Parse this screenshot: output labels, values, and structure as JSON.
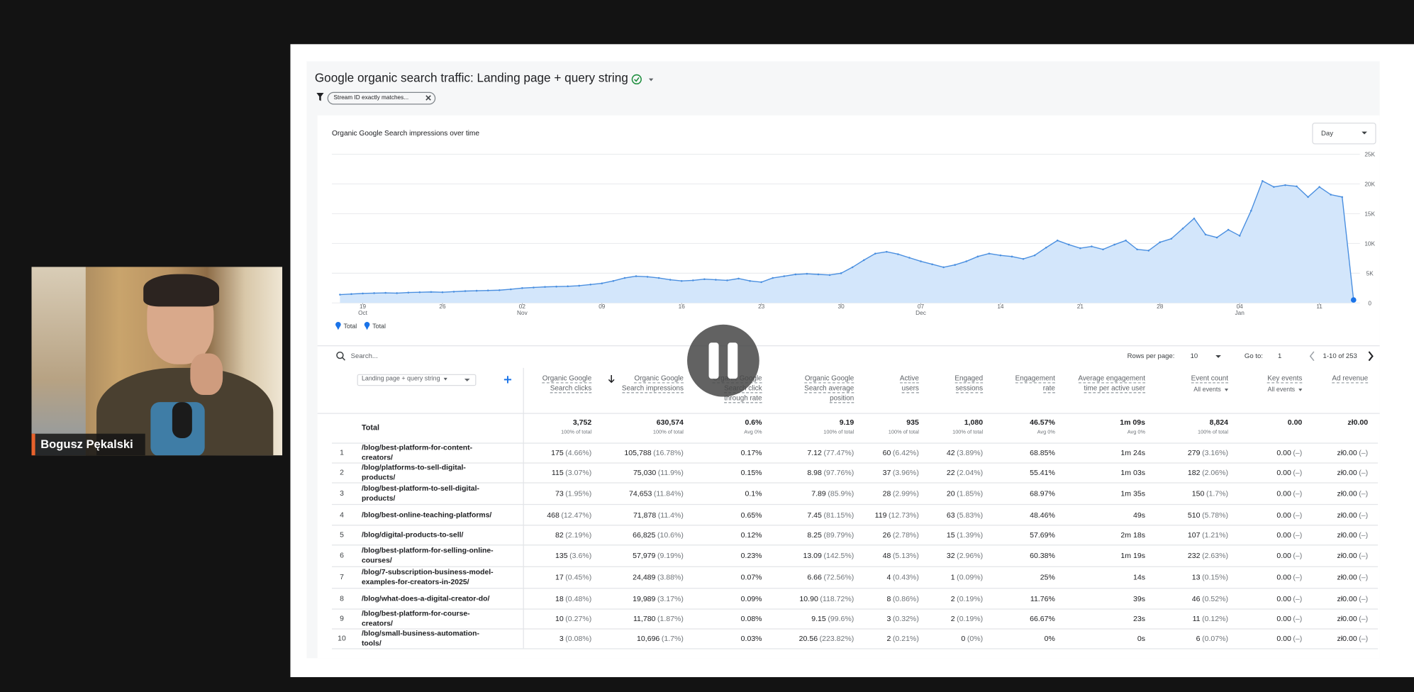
{
  "call": {
    "participant_name": "Bogusz Pękalski"
  },
  "report": {
    "title": "Google organic search traffic: Landing page + query string",
    "filter": "Stream ID exactly matches...",
    "granularity": "Day",
    "chart": {
      "type": "area",
      "title": "Organic Google Search impressions over time",
      "color": "#4a8fe0",
      "fill": "#d3e6fb",
      "grid": true,
      "values": [
        1400,
        1500,
        1600,
        1650,
        1700,
        1650,
        1750,
        1800,
        1850,
        1800,
        1900,
        2000,
        2050,
        2100,
        2150,
        2300,
        2500,
        2600,
        2700,
        2750,
        2800,
        2900,
        3100,
        3300,
        3700,
        4200,
        4500,
        4400,
        4200,
        3900,
        3700,
        3800,
        4000,
        3900,
        3800,
        4100,
        3700,
        3500,
        4200,
        4500,
        4800,
        4900,
        4800,
        4700,
        5000,
        6000,
        7200,
        8300,
        8600,
        8200,
        7600,
        7000,
        6500,
        6000,
        6400,
        7000,
        7800,
        8300,
        8000,
        7800,
        7400,
        8000,
        9300,
        10500,
        9800,
        9200,
        9500,
        9000,
        9800,
        10500,
        9000,
        8800,
        10200,
        10800,
        12500,
        14200,
        11500,
        11000,
        12300,
        11300,
        15500,
        20500,
        19500,
        19800,
        19600,
        17800,
        19500,
        18200,
        17800,
        500
      ],
      "xlim": [
        0,
        89
      ],
      "xticks": [
        {
          "value": 2,
          "label": "19",
          "month": "Oct"
        },
        {
          "value": 9,
          "label": "26"
        },
        {
          "value": 16,
          "label": "02",
          "month": "Nov"
        },
        {
          "value": 23,
          "label": "09"
        },
        {
          "value": 30,
          "label": "16"
        },
        {
          "value": 37,
          "label": "23"
        },
        {
          "value": 44,
          "label": "30"
        },
        {
          "value": 51,
          "label": "07",
          "month": "Dec"
        },
        {
          "value": 58,
          "label": "14"
        },
        {
          "value": 65,
          "label": "21"
        },
        {
          "value": 72,
          "label": "28"
        },
        {
          "value": 79,
          "label": "04",
          "month": "Jan"
        },
        {
          "value": 86,
          "label": "11"
        }
      ],
      "ylim": [
        0,
        25000
      ],
      "yticks": [
        0,
        {
          "value": 5000,
          "label": "5K"
        },
        {
          "value": 10000,
          "label": "10K"
        },
        {
          "value": 15000,
          "label": "15K"
        },
        {
          "value": 20000,
          "label": "20K"
        },
        {
          "value": 25000,
          "label": "25K"
        }
      ],
      "legend": [
        "Total",
        "Total"
      ]
    },
    "table_controls": {
      "search": "Search...",
      "rows_per_page_label": "Rows per page:",
      "rows_per_page": "10",
      "go_to_label": "Go to:",
      "go_to": "1",
      "range": "1-10 of 253"
    },
    "table": {
      "dimension": "Landing page + query string",
      "columns": [
        {
          "label": "Organic Google Search clicks"
        },
        {
          "label": "Organic Google Search impressions"
        },
        {
          "label": "Organic Google Search click through rate"
        },
        {
          "label": "Organic Google Search average position"
        },
        {
          "label": "Active users"
        },
        {
          "label": "Engaged sessions"
        },
        {
          "label": "Engagement rate"
        },
        {
          "label": "Average engagement time per active user"
        },
        {
          "label": "Event count",
          "filter": "All events"
        },
        {
          "label": "Key events",
          "filter": "All events"
        },
        {
          "label": "Ad revenue"
        }
      ],
      "total_label": "Total",
      "totals": [
        [
          "3,752",
          "100% of total"
        ],
        [
          "630,574",
          "100% of total"
        ],
        [
          "0.6%",
          "Avg 0%"
        ],
        [
          "9.19",
          "100% of total"
        ],
        [
          "935",
          "100% of total"
        ],
        [
          "1,080",
          "100% of total"
        ],
        [
          "46.57%",
          "Avg 0%"
        ],
        [
          "1m 09s",
          "Avg 0%"
        ],
        [
          "8,824",
          "100% of total"
        ],
        [
          "0.00"
        ],
        [
          "zł0.00"
        ]
      ],
      "rows": [
        {
          "rank": 1,
          "page": "/blog/best-platform-for-content-creators/",
          "cells": [
            [
              "175",
              "(4.66%)"
            ],
            [
              "105,788",
              "(16.78%)"
            ],
            [
              "0.17%"
            ],
            [
              "7.12",
              "(77.47%)"
            ],
            [
              "60",
              "(6.42%)"
            ],
            [
              "42",
              "(3.89%)"
            ],
            [
              "68.85%"
            ],
            [
              "1m 24s"
            ],
            [
              "279",
              "(3.16%)"
            ],
            [
              "0.00",
              "(–)"
            ],
            [
              "zł0.00",
              "(–)"
            ]
          ]
        },
        {
          "rank": 2,
          "page": "/blog/platforms-to-sell-digital-products/",
          "cells": [
            [
              "115",
              "(3.07%)"
            ],
            [
              "75,030",
              "(11.9%)"
            ],
            [
              "0.15%"
            ],
            [
              "8.98",
              "(97.76%)"
            ],
            [
              "37",
              "(3.96%)"
            ],
            [
              "22",
              "(2.04%)"
            ],
            [
              "55.41%"
            ],
            [
              "1m 03s"
            ],
            [
              "182",
              "(2.06%)"
            ],
            [
              "0.00",
              "(–)"
            ],
            [
              "zł0.00",
              "(–)"
            ]
          ]
        },
        {
          "rank": 3,
          "page": "/blog/best-platform-to-sell-digital-products/",
          "cells": [
            [
              "73",
              "(1.95%)"
            ],
            [
              "74,653",
              "(11.84%)"
            ],
            [
              "0.1%"
            ],
            [
              "7.89",
              "(85.9%)"
            ],
            [
              "28",
              "(2.99%)"
            ],
            [
              "20",
              "(1.85%)"
            ],
            [
              "68.97%"
            ],
            [
              "1m 35s"
            ],
            [
              "150",
              "(1.7%)"
            ],
            [
              "0.00",
              "(–)"
            ],
            [
              "zł0.00",
              "(–)"
            ]
          ]
        },
        {
          "rank": 4,
          "page": "/blog/best-online-teaching-platforms/",
          "cells": [
            [
              "468",
              "(12.47%)"
            ],
            [
              "71,878",
              "(11.4%)"
            ],
            [
              "0.65%"
            ],
            [
              "7.45",
              "(81.15%)"
            ],
            [
              "119",
              "(12.73%)"
            ],
            [
              "63",
              "(5.83%)"
            ],
            [
              "48.46%"
            ],
            [
              "49s"
            ],
            [
              "510",
              "(5.78%)"
            ],
            [
              "0.00",
              "(–)"
            ],
            [
              "zł0.00",
              "(–)"
            ]
          ]
        },
        {
          "rank": 5,
          "page": "/blog/digital-products-to-sell/",
          "cells": [
            [
              "82",
              "(2.19%)"
            ],
            [
              "66,825",
              "(10.6%)"
            ],
            [
              "0.12%"
            ],
            [
              "8.25",
              "(89.79%)"
            ],
            [
              "26",
              "(2.78%)"
            ],
            [
              "15",
              "(1.39%)"
            ],
            [
              "57.69%"
            ],
            [
              "2m 18s"
            ],
            [
              "107",
              "(1.21%)"
            ],
            [
              "0.00",
              "(–)"
            ],
            [
              "zł0.00",
              "(–)"
            ]
          ]
        },
        {
          "rank": 6,
          "page": "/blog/best-platform-for-selling-online-courses/",
          "cells": [
            [
              "135",
              "(3.6%)"
            ],
            [
              "57,979",
              "(9.19%)"
            ],
            [
              "0.23%"
            ],
            [
              "13.09",
              "(142.5%)"
            ],
            [
              "48",
              "(5.13%)"
            ],
            [
              "32",
              "(2.96%)"
            ],
            [
              "60.38%"
            ],
            [
              "1m 19s"
            ],
            [
              "232",
              "(2.63%)"
            ],
            [
              "0.00",
              "(–)"
            ],
            [
              "zł0.00",
              "(–)"
            ]
          ]
        },
        {
          "rank": 7,
          "page": "/blog/7-subscription-business-model-examples-for-creators-in-2025/",
          "cells": [
            [
              "17",
              "(0.45%)"
            ],
            [
              "24,489",
              "(3.88%)"
            ],
            [
              "0.07%"
            ],
            [
              "6.66",
              "(72.56%)"
            ],
            [
              "4",
              "(0.43%)"
            ],
            [
              "1",
              "(0.09%)"
            ],
            [
              "25%"
            ],
            [
              "14s"
            ],
            [
              "13",
              "(0.15%)"
            ],
            [
              "0.00",
              "(–)"
            ],
            [
              "zł0.00",
              "(–)"
            ]
          ]
        },
        {
          "rank": 8,
          "page": "/blog/what-does-a-digital-creator-do/",
          "cells": [
            [
              "18",
              "(0.48%)"
            ],
            [
              "19,989",
              "(3.17%)"
            ],
            [
              "0.09%"
            ],
            [
              "10.90",
              "(118.72%)"
            ],
            [
              "8",
              "(0.86%)"
            ],
            [
              "2",
              "(0.19%)"
            ],
            [
              "11.76%"
            ],
            [
              "39s"
            ],
            [
              "46",
              "(0.52%)"
            ],
            [
              "0.00",
              "(–)"
            ],
            [
              "zł0.00",
              "(–)"
            ]
          ]
        },
        {
          "rank": 9,
          "page": "/blog/best-platform-for-course-creators/",
          "cells": [
            [
              "10",
              "(0.27%)"
            ],
            [
              "11,780",
              "(1.87%)"
            ],
            [
              "0.08%"
            ],
            [
              "9.15",
              "(99.6%)"
            ],
            [
              "3",
              "(0.32%)"
            ],
            [
              "2",
              "(0.19%)"
            ],
            [
              "66.67%"
            ],
            [
              "23s"
            ],
            [
              "11",
              "(0.12%)"
            ],
            [
              "0.00",
              "(–)"
            ],
            [
              "zł0.00",
              "(–)"
            ]
          ]
        },
        {
          "rank": 10,
          "page": "/blog/small-business-automation-tools/",
          "cells": [
            [
              "3",
              "(0.08%)"
            ],
            [
              "10,696",
              "(1.7%)"
            ],
            [
              "0.03%"
            ],
            [
              "20.56",
              "(223.82%)"
            ],
            [
              "2",
              "(0.21%)"
            ],
            [
              "0",
              "(0%)"
            ],
            [
              "0%"
            ],
            [
              "0s"
            ],
            [
              "6",
              "(0.07%)"
            ],
            [
              "0.00",
              "(–)"
            ],
            [
              "zł0.00",
              "(–)"
            ]
          ]
        }
      ]
    }
  }
}
